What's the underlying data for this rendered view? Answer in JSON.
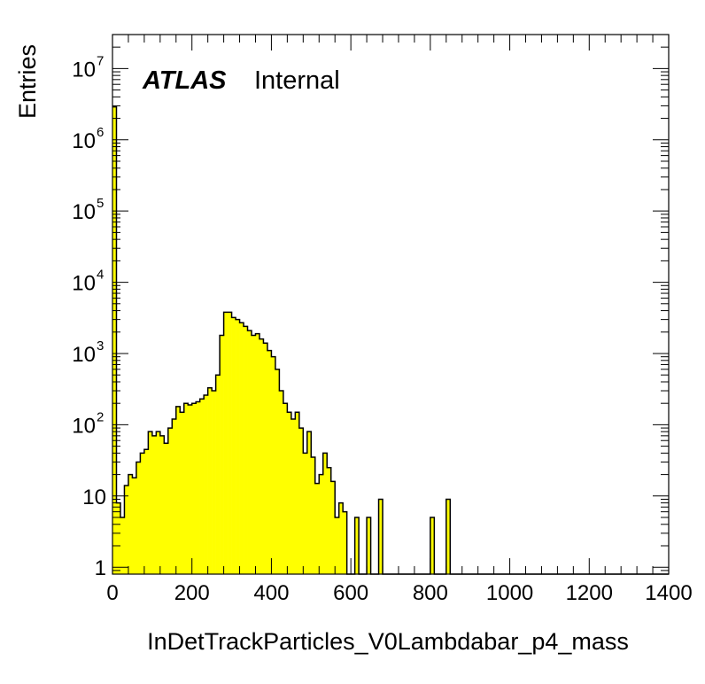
{
  "chart_data": {
    "type": "bar",
    "title": "",
    "xlabel": "InDetTrackParticles_V0Lambdabar_p4_mass",
    "ylabel": "Entries",
    "xlim": [
      0,
      1400
    ],
    "ylim": [
      0.8,
      30000000
    ],
    "y_scale": "log",
    "grid": false,
    "legend": "none",
    "bin_width": 10,
    "bar_color": "#ffff00",
    "x_ticks": [
      "0",
      "200",
      "400",
      "600",
      "800",
      "1000",
      "1200",
      "1400"
    ],
    "y_ticks": [
      {
        "value": 1,
        "base": "1",
        "exp": ""
      },
      {
        "value": 10,
        "base": "10",
        "exp": ""
      },
      {
        "value": 100,
        "base": "10",
        "exp": "2"
      },
      {
        "value": 1000,
        "base": "10",
        "exp": "3"
      },
      {
        "value": 10000,
        "base": "10",
        "exp": "4"
      },
      {
        "value": 100000,
        "base": "10",
        "exp": "5"
      },
      {
        "value": 1000000,
        "base": "10",
        "exp": "6"
      },
      {
        "value": 10000000,
        "base": "10",
        "exp": "7"
      }
    ],
    "values": [
      2900000,
      8,
      5,
      14,
      20,
      18,
      30,
      40,
      45,
      80,
      70,
      80,
      70,
      55,
      90,
      120,
      180,
      150,
      200,
      190,
      200,
      210,
      230,
      260,
      330,
      300,
      500,
      1800,
      3800,
      3800,
      3200,
      3000,
      2700,
      2400,
      2100,
      1800,
      1900,
      1600,
      1400,
      1100,
      900,
      600,
      300,
      200,
      150,
      120,
      150,
      90,
      40,
      80,
      35,
      15,
      20,
      40,
      25,
      16,
      5,
      8,
      6,
      0,
      0,
      5,
      0,
      0,
      5,
      0,
      0,
      9,
      0,
      0,
      0,
      0,
      0,
      0,
      0,
      0,
      0,
      0,
      0,
      0,
      5,
      0,
      0,
      0,
      9,
      0,
      0,
      0,
      0,
      0,
      0,
      0,
      0,
      0,
      0,
      0,
      0,
      0,
      0,
      0,
      0,
      0,
      0,
      0,
      0,
      0,
      0,
      0,
      0,
      0,
      0,
      0,
      0,
      0,
      0,
      0,
      0,
      0,
      0,
      0,
      0,
      0,
      0,
      0,
      0,
      0,
      0,
      0,
      0,
      0,
      0,
      0,
      0,
      0,
      0,
      0,
      0,
      0,
      0,
      0
    ],
    "annotations": {
      "atlas": "ATLAS",
      "label": "Internal"
    }
  }
}
